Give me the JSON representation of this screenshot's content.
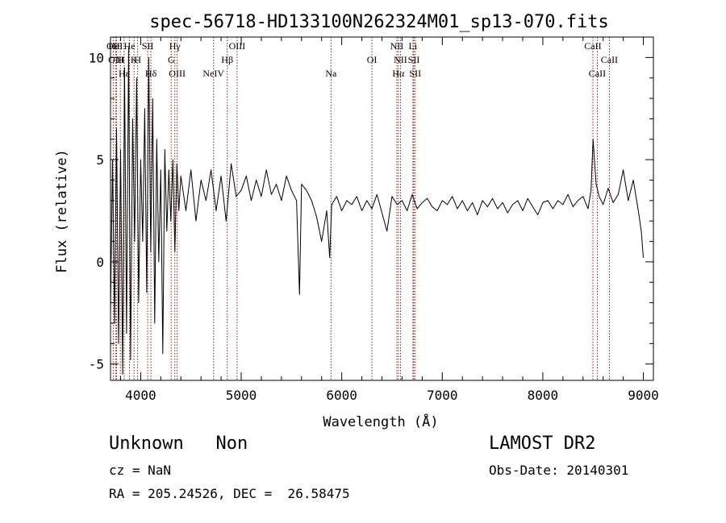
{
  "chart_data": {
    "type": "line",
    "title": "spec-56718-HD133100N262324M01_sp13-070.fits",
    "xlabel": "Wavelength (Å)",
    "ylabel": "Flux (relative)",
    "xlim": [
      3700,
      9100
    ],
    "ylim": [
      -5.8,
      11.0
    ],
    "xticks": [
      4000,
      5000,
      6000,
      7000,
      8000,
      9000
    ],
    "xtick_labels": [
      "4000",
      "5000",
      "6000",
      "7000",
      "8000",
      "9000"
    ],
    "yticks": [
      -5,
      0,
      5,
      10
    ],
    "ytick_labels": [
      "-5",
      "0",
      "5",
      "10"
    ],
    "grid": false,
    "line_color": "#000000",
    "marker_color": "#8b1a1a",
    "series": [
      {
        "x": [
          3700,
          3720,
          3740,
          3760,
          3780,
          3800,
          3820,
          3840,
          3860,
          3880,
          3900,
          3920,
          3940,
          3960,
          3980,
          4000,
          4020,
          4040,
          4060,
          4080,
          4100,
          4120,
          4140,
          4160,
          4180,
          4200,
          4220,
          4240,
          4260,
          4280,
          4300,
          4320,
          4340,
          4360,
          4380,
          4400,
          4450,
          4500,
          4550,
          4600,
          4650,
          4700,
          4750,
          4800,
          4850,
          4900,
          4950,
          5000,
          5050,
          5100,
          5150,
          5200,
          5250,
          5300,
          5350,
          5400,
          5450,
          5500,
          5550,
          5580,
          5600,
          5650,
          5700,
          5750,
          5800,
          5850,
          5880,
          5900,
          5950,
          6000,
          6050,
          6100,
          6150,
          6200,
          6250,
          6300,
          6350,
          6400,
          6450,
          6500,
          6550,
          6600,
          6650,
          6700,
          6750,
          6800,
          6850,
          6900,
          6950,
          7000,
          7050,
          7100,
          7150,
          7200,
          7250,
          7300,
          7350,
          7400,
          7450,
          7500,
          7550,
          7600,
          7650,
          7700,
          7750,
          7800,
          7850,
          7900,
          7950,
          8000,
          8050,
          8100,
          8150,
          8200,
          8250,
          8300,
          8350,
          8400,
          8450,
          8480,
          8500,
          8530,
          8560,
          8600,
          8650,
          8700,
          8750,
          8800,
          8850,
          8900,
          8950,
          8980,
          9000
        ],
        "y": [
          -2.5,
          5.0,
          -3.0,
          6.5,
          -4.0,
          5.5,
          -5.5,
          9.5,
          -3.5,
          10.5,
          -4.8,
          7.0,
          1.0,
          9.0,
          -2.0,
          5.0,
          1.0,
          7.5,
          -1.5,
          10.0,
          0.5,
          8.0,
          -3.0,
          6.0,
          0.0,
          4.5,
          -4.5,
          5.5,
          1.5,
          4.5,
          2.0,
          5.0,
          0.5,
          4.8,
          2.5,
          4.2,
          2.5,
          4.5,
          2.0,
          4.0,
          3.0,
          4.5,
          2.5,
          4.2,
          2.0,
          4.8,
          3.2,
          3.5,
          4.2,
          3.0,
          4.0,
          3.2,
          4.5,
          3.3,
          3.8,
          3.0,
          4.2,
          3.5,
          3.0,
          -1.6,
          3.8,
          3.5,
          3.0,
          2.2,
          1.0,
          2.5,
          0.2,
          2.8,
          3.2,
          2.5,
          3.0,
          2.8,
          3.2,
          2.5,
          3.0,
          2.6,
          3.3,
          2.4,
          1.5,
          3.2,
          2.8,
          3.0,
          2.5,
          3.3,
          2.6,
          2.9,
          3.1,
          2.7,
          2.5,
          3.0,
          2.8,
          3.2,
          2.6,
          3.0,
          2.5,
          2.9,
          2.3,
          3.0,
          2.7,
          3.1,
          2.6,
          2.9,
          2.4,
          2.8,
          3.0,
          2.5,
          3.1,
          2.7,
          2.3,
          2.9,
          3.0,
          2.6,
          3.0,
          2.8,
          3.3,
          2.7,
          3.0,
          3.2,
          2.6,
          3.5,
          6.0,
          3.8,
          3.2,
          2.8,
          3.6,
          2.9,
          3.3,
          4.5,
          3.0,
          4.0,
          2.5,
          1.5,
          0.2
        ]
      }
    ],
    "line_markers": [
      {
        "label": "OII",
        "x": 3727,
        "row": 0
      },
      {
        "label": "HeI",
        "x": 3750,
        "row": 0
      },
      {
        "label": "He",
        "x": 3889,
        "row": 0
      },
      {
        "label": "SII",
        "x": 4070,
        "row": 0
      },
      {
        "label": "Hγ",
        "x": 4340,
        "row": 0
      },
      {
        "label": "OIII",
        "x": 4959,
        "row": 0
      },
      {
        "label": "NII",
        "x": 6548,
        "row": 0
      },
      {
        "label": "Li",
        "x": 6708,
        "row": 0
      },
      {
        "label": "CaII",
        "x": 8498,
        "row": 0
      },
      {
        "label": "OIII",
        "x": 3760,
        "row": 1
      },
      {
        "label": "H",
        "x": 3798,
        "row": 1
      },
      {
        "label": "K",
        "x": 3934,
        "row": 1
      },
      {
        "label": "H",
        "x": 3970,
        "row": 1
      },
      {
        "label": "G",
        "x": 4304,
        "row": 1
      },
      {
        "label": "Hβ",
        "x": 4861,
        "row": 1
      },
      {
        "label": "OI",
        "x": 6300,
        "row": 1
      },
      {
        "label": "NII",
        "x": 6584,
        "row": 1
      },
      {
        "label": "SII",
        "x": 6717,
        "row": 1
      },
      {
        "label": "CaII",
        "x": 8662,
        "row": 1
      },
      {
        "label": "Hε",
        "x": 3835,
        "row": 2
      },
      {
        "label": "Hδ",
        "x": 4102,
        "row": 2
      },
      {
        "label": "OIII",
        "x": 4363,
        "row": 2
      },
      {
        "label": "NeIV",
        "x": 4725,
        "row": 2
      },
      {
        "label": "Na",
        "x": 5893,
        "row": 2
      },
      {
        "label": "Hα",
        "x": 6563,
        "row": 2
      },
      {
        "label": "SII",
        "x": 6731,
        "row": 2
      },
      {
        "label": "CaII",
        "x": 8542,
        "row": 2
      }
    ]
  },
  "info": {
    "class_text": "Unknown   Non",
    "cz_text": "cz = NaN",
    "coord_text": "RA = 205.24526, DEC =  26.58475",
    "survey_text": "LAMOST DR2",
    "obs_date_text": "Obs-Date: 20140301"
  }
}
